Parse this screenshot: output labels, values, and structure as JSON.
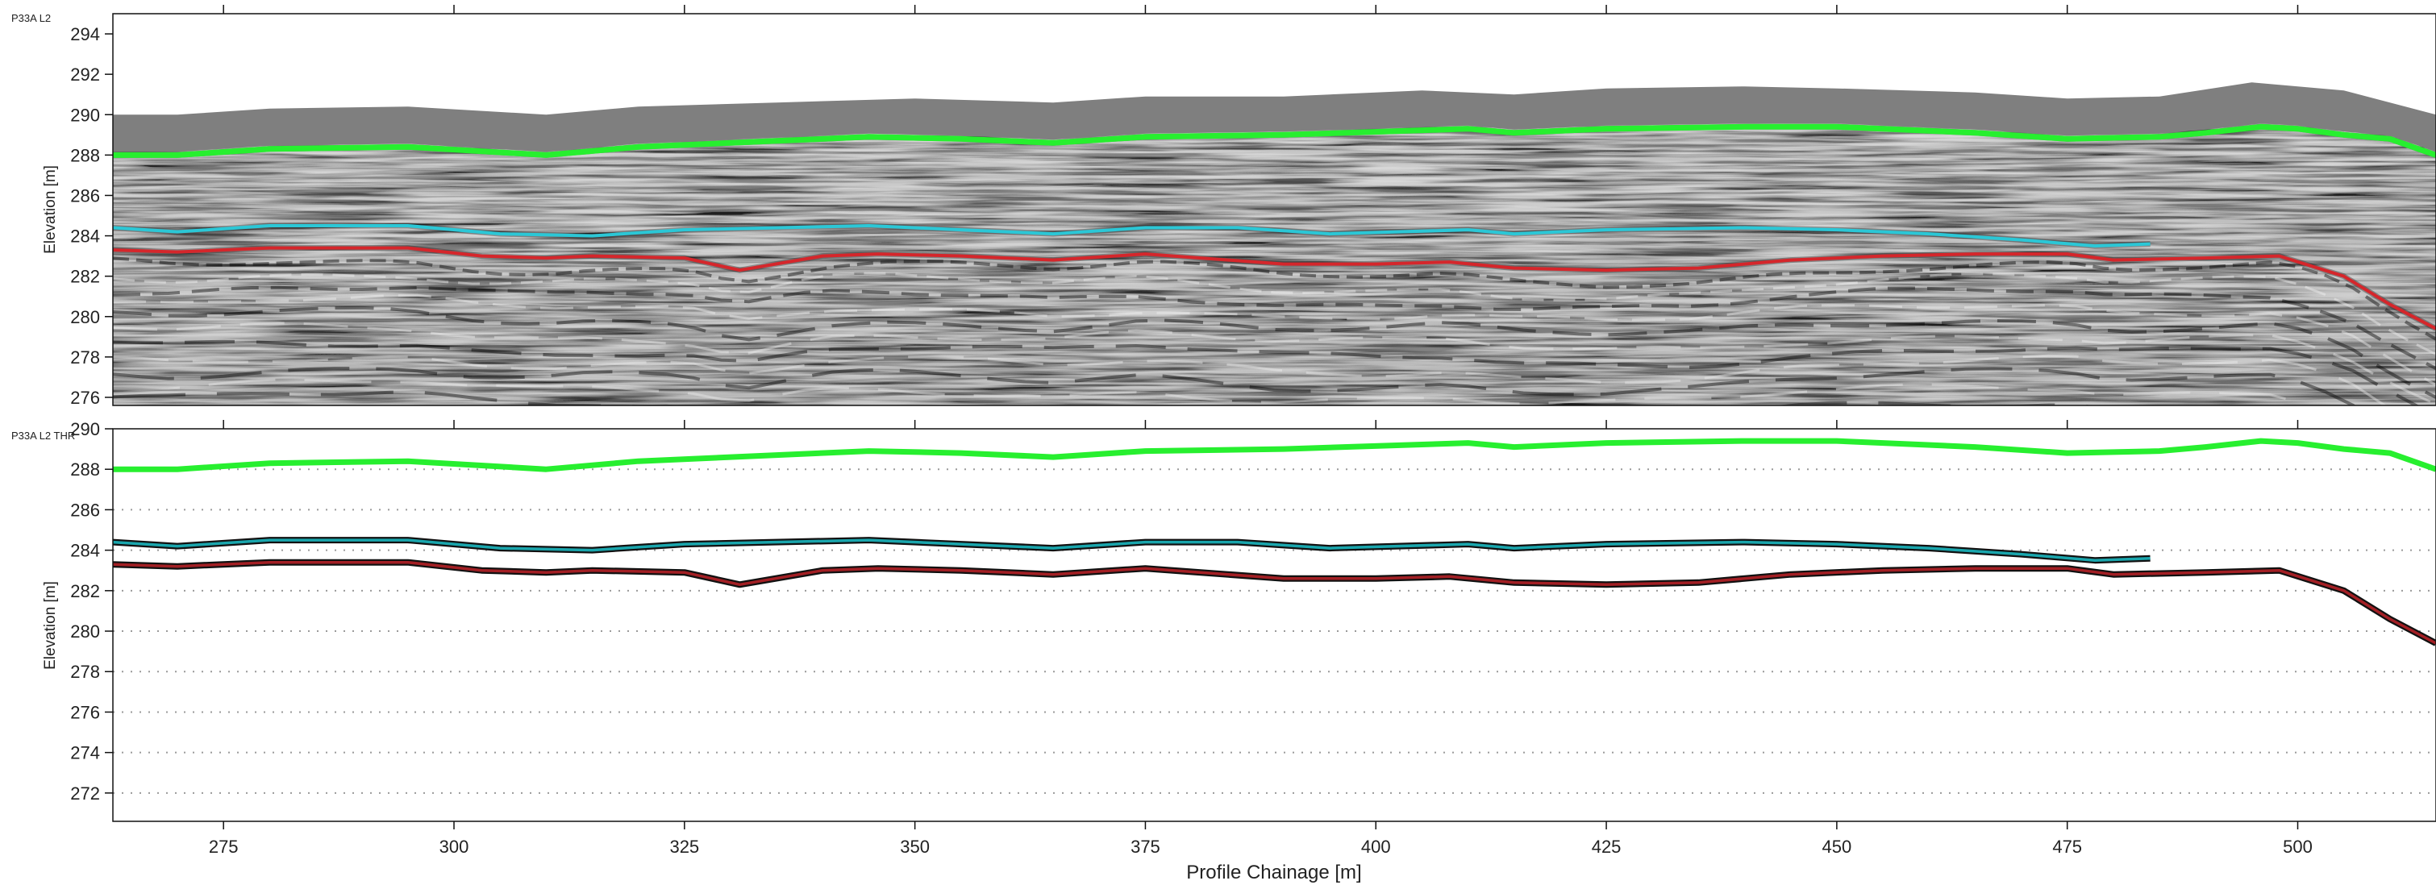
{
  "chart_data": [
    {
      "type": "line",
      "panel": "radargram",
      "title": "P33A L2",
      "xlabel": "",
      "ylabel": "Elevation [m]",
      "xlim": [
        263,
        515
      ],
      "ylim": [
        275.6,
        295
      ],
      "x_ticks": [
        275,
        300,
        325,
        350,
        375,
        400,
        425,
        450,
        475,
        500
      ],
      "y_ticks": [
        276,
        278,
        280,
        282,
        284,
        286,
        288,
        290,
        292,
        294
      ],
      "y_tick_labels": [
        "276",
        "278",
        "280",
        "282",
        "284",
        "286",
        "288",
        "290",
        "292",
        "294"
      ],
      "grid": false,
      "background": "grayscale radargram",
      "surface": {
        "x": [
          263,
          270,
          280,
          295,
          310,
          320,
          335,
          350,
          365,
          375,
          390,
          405,
          415,
          425,
          440,
          450,
          465,
          475,
          485,
          495,
          505,
          515
        ],
        "values": [
          290.0,
          290.0,
          290.3,
          290.4,
          290.0,
          290.4,
          290.6,
          290.8,
          290.6,
          290.9,
          290.9,
          291.2,
          291.0,
          291.3,
          291.4,
          291.3,
          291.1,
          290.8,
          290.9,
          291.6,
          291.2,
          290.0
        ]
      },
      "series": [
        {
          "color": "#27ef2f",
          "x": [
            263,
            270,
            280,
            295,
            310,
            320,
            335,
            345,
            355,
            365,
            375,
            390,
            410,
            415,
            425,
            440,
            450,
            465,
            475,
            485,
            490,
            496,
            500,
            505,
            510,
            515
          ],
          "values": [
            288.0,
            288.0,
            288.3,
            288.4,
            288.0,
            288.4,
            288.7,
            288.9,
            288.8,
            288.6,
            288.9,
            289.0,
            289.3,
            289.1,
            289.3,
            289.4,
            289.4,
            289.1,
            288.8,
            288.9,
            289.1,
            289.4,
            289.3,
            289.0,
            288.8,
            288.0
          ]
        },
        {
          "color": "#2bc7d6",
          "x": [
            263,
            270,
            280,
            295,
            305,
            315,
            325,
            345,
            355,
            365,
            375,
            385,
            395,
            410,
            415,
            425,
            440,
            450,
            460,
            470,
            478,
            484
          ],
          "values": [
            284.4,
            284.2,
            284.5,
            284.5,
            284.1,
            284.0,
            284.3,
            284.5,
            284.3,
            284.1,
            284.4,
            284.4,
            284.1,
            284.3,
            284.1,
            284.3,
            284.4,
            284.3,
            284.1,
            283.8,
            283.5,
            283.6
          ]
        },
        {
          "color": "#d5262b",
          "x": [
            263,
            270,
            280,
            295,
            303,
            310,
            315,
            325,
            331,
            340,
            346,
            355,
            365,
            375,
            390,
            400,
            408,
            415,
            425,
            435,
            445,
            455,
            465,
            475,
            480,
            490,
            498,
            505,
            510,
            515
          ],
          "values": [
            283.3,
            283.2,
            283.4,
            283.4,
            283.0,
            282.9,
            283.0,
            282.9,
            282.3,
            283.0,
            283.1,
            283.0,
            282.8,
            283.1,
            282.6,
            282.6,
            282.7,
            282.4,
            282.3,
            282.4,
            282.8,
            283.0,
            283.1,
            283.1,
            282.8,
            282.9,
            283.0,
            282.0,
            280.6,
            279.4
          ]
        }
      ]
    },
    {
      "type": "line",
      "panel": "interpretation",
      "title": "P33A L2 THR",
      "xlabel": "Profile Chainage [m]",
      "ylabel": "Elevation [m]",
      "xlim": [
        263,
        515
      ],
      "ylim": [
        270.6,
        290
      ],
      "x_ticks": [
        275,
        300,
        325,
        350,
        375,
        400,
        425,
        450,
        475,
        500
      ],
      "x_tick_labels": [
        "275",
        "300",
        "325",
        "350",
        "375",
        "400",
        "425",
        "450",
        "475",
        "500"
      ],
      "y_ticks": [
        272,
        274,
        276,
        278,
        280,
        282,
        284,
        286,
        288,
        290
      ],
      "y_tick_labels": [
        "272",
        "274",
        "276",
        "278",
        "280",
        "282",
        "284",
        "286",
        "288",
        "290"
      ],
      "grid": "horizontal dotted",
      "series": [
        {
          "color": "#27ef2f",
          "x": [
            263,
            270,
            280,
            295,
            310,
            320,
            335,
            345,
            355,
            365,
            375,
            390,
            410,
            415,
            425,
            440,
            450,
            465,
            475,
            485,
            490,
            496,
            500,
            505,
            510,
            515
          ],
          "values": [
            288.0,
            288.0,
            288.3,
            288.4,
            288.0,
            288.4,
            288.7,
            288.9,
            288.8,
            288.6,
            288.9,
            289.0,
            289.3,
            289.1,
            289.3,
            289.4,
            289.4,
            289.1,
            288.8,
            288.9,
            289.1,
            289.4,
            289.3,
            289.0,
            288.8,
            288.0
          ]
        },
        {
          "color": "#1aa6ad",
          "x": [
            263,
            270,
            280,
            295,
            305,
            315,
            325,
            345,
            355,
            365,
            375,
            385,
            395,
            410,
            415,
            425,
            440,
            450,
            460,
            470,
            478,
            484
          ],
          "values": [
            284.4,
            284.2,
            284.5,
            284.5,
            284.1,
            284.0,
            284.3,
            284.5,
            284.3,
            284.1,
            284.4,
            284.4,
            284.1,
            284.3,
            284.1,
            284.3,
            284.4,
            284.3,
            284.1,
            283.8,
            283.5,
            283.6
          ]
        },
        {
          "color": "#a31f24",
          "x": [
            263,
            270,
            280,
            295,
            303,
            310,
            315,
            325,
            331,
            340,
            346,
            355,
            365,
            375,
            390,
            400,
            408,
            415,
            425,
            435,
            445,
            455,
            465,
            475,
            480,
            490,
            498,
            505,
            510,
            515
          ],
          "values": [
            283.3,
            283.2,
            283.4,
            283.4,
            283.0,
            282.9,
            283.0,
            282.9,
            282.3,
            283.0,
            283.1,
            283.0,
            282.8,
            283.1,
            282.6,
            282.6,
            282.7,
            282.4,
            282.3,
            282.4,
            282.8,
            283.0,
            283.1,
            283.1,
            282.8,
            282.9,
            283.0,
            282.0,
            280.6,
            279.4
          ]
        }
      ]
    }
  ]
}
